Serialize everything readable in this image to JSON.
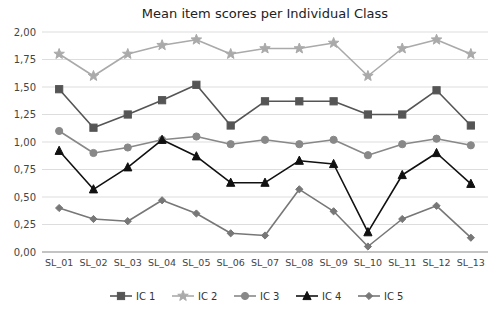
{
  "chart_data": {
    "type": "line",
    "title": "Mean item scores per Individual Class",
    "categories": [
      "SL_01",
      "SL_02",
      "SL_03",
      "SL_04",
      "SL_05",
      "SL_06",
      "SL_07",
      "SL_08",
      "SL_09",
      "SL_10",
      "SL_11",
      "SL_12",
      "SL_13"
    ],
    "series": [
      {
        "name": "IC 1",
        "color": "#555555",
        "marker": "square",
        "values": [
          1.48,
          1.13,
          1.25,
          1.38,
          1.52,
          1.15,
          1.37,
          1.37,
          1.37,
          1.25,
          1.25,
          1.47,
          1.15
        ]
      },
      {
        "name": "IC 2",
        "color": "#aaaaaa",
        "marker": "star",
        "values": [
          1.8,
          1.6,
          1.8,
          1.88,
          1.93,
          1.8,
          1.85,
          1.85,
          1.9,
          1.6,
          1.85,
          1.93,
          1.8
        ]
      },
      {
        "name": "IC 3",
        "color": "#888888",
        "marker": "circle",
        "values": [
          1.1,
          0.9,
          0.95,
          1.02,
          1.05,
          0.98,
          1.02,
          0.98,
          1.02,
          0.88,
          0.98,
          1.03,
          0.97
        ]
      },
      {
        "name": "IC 4",
        "color": "#111111",
        "marker": "triangle",
        "values": [
          0.92,
          0.57,
          0.77,
          1.02,
          0.87,
          0.63,
          0.63,
          0.83,
          0.8,
          0.18,
          0.7,
          0.9,
          0.62
        ]
      },
      {
        "name": "IC 5",
        "color": "#777777",
        "marker": "diamond",
        "values": [
          0.4,
          0.3,
          0.28,
          0.47,
          0.35,
          0.17,
          0.15,
          0.57,
          0.37,
          0.05,
          0.3,
          0.42,
          0.13
        ]
      }
    ],
    "ylim": [
      0.0,
      2.0
    ],
    "yticks": [
      {
        "value": 0.0,
        "label": "0,00"
      },
      {
        "value": 0.25,
        "label": "0,25"
      },
      {
        "value": 0.5,
        "label": "0,50"
      },
      {
        "value": 0.75,
        "label": "0,75"
      },
      {
        "value": 1.0,
        "label": "1,00"
      },
      {
        "value": 1.25,
        "label": "1,25"
      },
      {
        "value": 1.5,
        "label": "1,50"
      },
      {
        "value": 1.75,
        "label": "1,75"
      },
      {
        "value": 2.0,
        "label": "2,00"
      }
    ],
    "grid": true,
    "legend": "bottom"
  }
}
